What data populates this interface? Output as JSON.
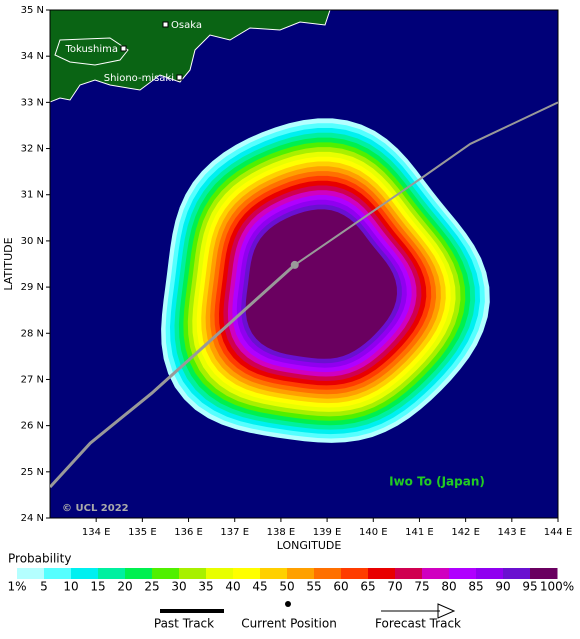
{
  "map": {
    "lon_ticks": [
      {
        "value": 134,
        "label": "134 E"
      },
      {
        "value": 135,
        "label": "135 E"
      },
      {
        "value": 136,
        "label": "136 E"
      },
      {
        "value": 137,
        "label": "137 E"
      },
      {
        "value": 138,
        "label": "138 E"
      },
      {
        "value": 139,
        "label": "139 E"
      },
      {
        "value": 140,
        "label": "140 E"
      },
      {
        "value": 141,
        "label": "141 E"
      },
      {
        "value": 142,
        "label": "142 E"
      },
      {
        "value": 143,
        "label": "143 E"
      },
      {
        "value": 144,
        "label": "144 E"
      }
    ],
    "lat_ticks": [
      {
        "value": 24,
        "label": "24 N"
      },
      {
        "value": 25,
        "label": "25 N"
      },
      {
        "value": 26,
        "label": "26 N"
      },
      {
        "value": 27,
        "label": "27 N"
      },
      {
        "value": 28,
        "label": "28 N"
      },
      {
        "value": 29,
        "label": "29 N"
      },
      {
        "value": 30,
        "label": "30 N"
      },
      {
        "value": 31,
        "label": "31 N"
      },
      {
        "value": 32,
        "label": "32 N"
      },
      {
        "value": 33,
        "label": "33 N"
      },
      {
        "value": 34,
        "label": "34 N"
      },
      {
        "value": 35,
        "label": "35 N"
      }
    ],
    "lonlim": [
      133,
      144
    ],
    "latlim": [
      24,
      35
    ],
    "x_label": "LONGITUDE",
    "y_label": "LATITUDE",
    "places": [
      "Osaka",
      "Tokushima",
      "Shiono-misaki"
    ],
    "region_label": "Iwo To (Japan)",
    "credit": "© UCL 2022",
    "past_track": {
      "lon": [
        133,
        133.87,
        135.2,
        138.3
      ],
      "lat": [
        24.67,
        25.62,
        26.7,
        29.48
      ]
    },
    "forecast_track": {
      "lon": [
        138.3,
        141.1,
        142.1,
        144
      ],
      "lat": [
        29.48,
        31.4,
        32.1,
        33
      ]
    },
    "center": {
      "lon": 138.8,
      "lat": 29.0
    }
  },
  "probability_scale": {
    "title": "Probability",
    "labels": [
      "1%",
      "5",
      "10",
      "15",
      "20",
      "25",
      "30",
      "35",
      "40",
      "45",
      "50",
      "55",
      "60",
      "65",
      "70",
      "75",
      "80",
      "85",
      "90",
      "95",
      "100%"
    ],
    "colors": [
      "#b4ffff",
      "#55ffff",
      "#00f0f0",
      "#00f0a0",
      "#00f050",
      "#50f000",
      "#a8f000",
      "#e8ff00",
      "#ffff00",
      "#ffd000",
      "#ffa000",
      "#ff7000",
      "#ff3c00",
      "#e80000",
      "#d00050",
      "#d000c0",
      "#b000ff",
      "#9000f0",
      "#6a10d0",
      "#6a0060"
    ]
  },
  "legend": [
    "Past Track",
    "Current Position",
    "Forecast Track"
  ]
}
